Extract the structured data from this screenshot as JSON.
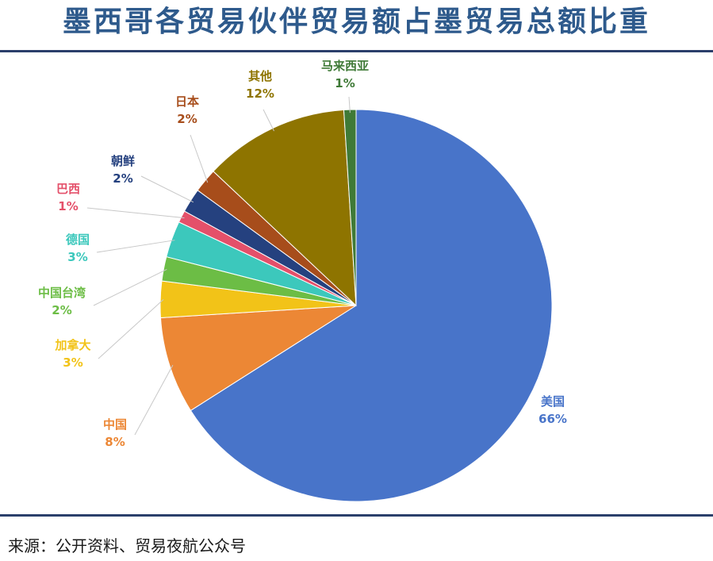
{
  "title": "墨西哥各贸易伙伴贸易额占墨贸易总额比重",
  "source": "来源：公开资料、贸易夜航公众号",
  "chart_data": {
    "type": "pie",
    "slices": [
      {
        "name": "美国",
        "value": 66,
        "label": "66%",
        "color": "#4874c9"
      },
      {
        "name": "中国",
        "value": 8,
        "label": "8%",
        "color": "#ec8735"
      },
      {
        "name": "加拿大",
        "value": 3,
        "label": "3%",
        "color": "#f2c318"
      },
      {
        "name": "中国台湾",
        "value": 2,
        "label": "2%",
        "color": "#6cbd45"
      },
      {
        "name": "德国",
        "value": 3,
        "label": "3%",
        "color": "#3cc8bc"
      },
      {
        "name": "巴西",
        "value": 1,
        "label": "1%",
        "color": "#e4506a"
      },
      {
        "name": "朝鲜",
        "value": 2,
        "label": "2%",
        "color": "#25417f"
      },
      {
        "name": "日本",
        "value": 2,
        "label": "2%",
        "color": "#a74d1b"
      },
      {
        "name": "其他",
        "value": 12,
        "label": "12%",
        "color": "#8e7400"
      },
      {
        "name": "马来西亚",
        "value": 1,
        "label": "1%",
        "color": "#3f7a37"
      }
    ]
  }
}
